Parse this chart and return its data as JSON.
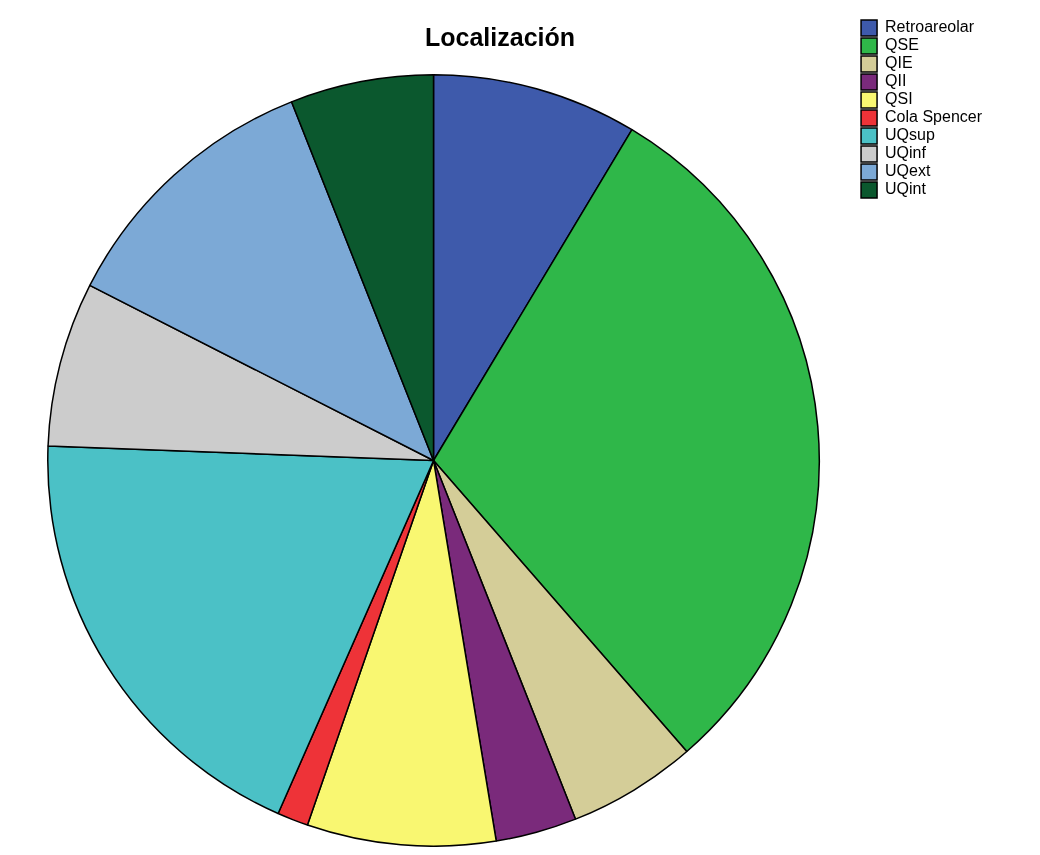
{
  "chart_data": {
    "type": "pie",
    "title": "Localización",
    "categories": [
      "Retroareolar",
      "QSE",
      "QIE",
      "QII",
      "QSI",
      "Cola Spencer",
      "UQsup",
      "UQinf",
      "UQext",
      "UQint"
    ],
    "values": [
      8.6,
      30.0,
      5.4,
      3.4,
      7.9,
      1.3,
      19.0,
      6.9,
      11.5,
      6.0
    ],
    "colors": [
      "#3e5aab",
      "#2fb749",
      "#d4cd98",
      "#7a2a7b",
      "#f9f771",
      "#ee3338",
      "#4bc1c6",
      "#cccccc",
      "#7ca9d6",
      "#0b582e"
    ],
    "legend": "top right"
  }
}
